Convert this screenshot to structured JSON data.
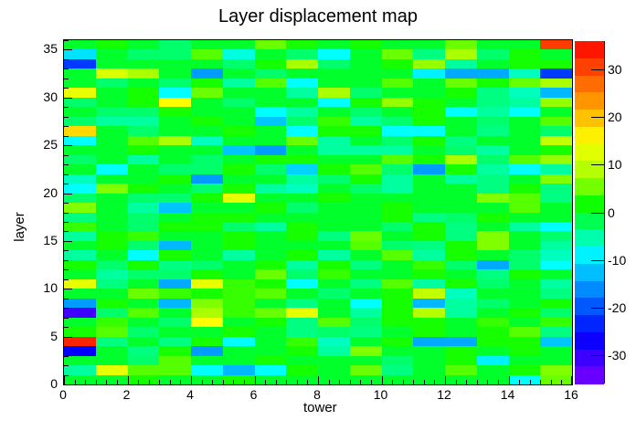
{
  "title": "Layer displacement map",
  "chart_data": {
    "type": "heatmap",
    "title": "Layer displacement map",
    "xlabel": "tower",
    "ylabel": "layer",
    "x_range": [
      0,
      16
    ],
    "y_range": [
      0,
      36
    ],
    "x_major_ticks": [
      0,
      2,
      4,
      6,
      8,
      10,
      12,
      14,
      16
    ],
    "x_minor_divisions_per_major": 6,
    "y_major_ticks": [
      0,
      5,
      10,
      15,
      20,
      25,
      30,
      35
    ],
    "y_minor_step": 1,
    "grid": false,
    "colorbar": {
      "position": "right",
      "tick_labels": [
        30,
        20,
        10,
        0,
        -10,
        -20,
        -30
      ],
      "value_range": [
        -36,
        36
      ],
      "bands": 20,
      "palette": "rainbow",
      "palette_hue_anchors": [
        [
          -36,
          270
        ],
        [
          -26,
          240
        ],
        [
          -20,
          220
        ],
        [
          -14,
          200
        ],
        [
          -8,
          180
        ],
        [
          -4,
          150
        ],
        [
          0,
          130
        ],
        [
          4,
          100
        ],
        [
          8,
          80
        ],
        [
          15,
          60
        ],
        [
          20,
          45
        ],
        [
          36,
          0
        ]
      ]
    },
    "rows_order": "values[0] is layer 0 (bottom row), values[35] is layer 35 (top row); 16 columns = towers 0..15",
    "values": [
      [
        0,
        0,
        2,
        0,
        0,
        2,
        0,
        0,
        0,
        0,
        0,
        0,
        0,
        0,
        -8,
        5
      ],
      [
        -5,
        13,
        4,
        4,
        -8,
        -13,
        -8,
        2,
        0,
        5,
        -4,
        0,
        4,
        0,
        2,
        6
      ],
      [
        0,
        0,
        -3,
        4,
        0,
        0,
        2,
        0,
        0,
        0,
        -3,
        0,
        2,
        -9,
        0,
        0
      ],
      [
        -26,
        0,
        -4,
        2,
        -15,
        0,
        0,
        2,
        -5,
        6,
        0,
        0,
        2,
        0,
        2,
        0
      ],
      [
        33,
        -4,
        0,
        -4,
        2,
        -8,
        0,
        3,
        -6,
        0,
        2,
        -14,
        -14,
        2,
        2,
        -12
      ],
      [
        2,
        4,
        -3,
        0,
        0,
        2,
        0,
        -4,
        -3,
        -4,
        0,
        2,
        0,
        2,
        4,
        -4
      ],
      [
        0,
        3,
        0,
        -3,
        15,
        0,
        2,
        -4,
        4,
        -3,
        2,
        2,
        0,
        3,
        0,
        3
      ],
      [
        -31,
        -3,
        4,
        0,
        8,
        3,
        5,
        13,
        0,
        -5,
        2,
        9,
        -5,
        0,
        2,
        -3
      ],
      [
        -15,
        2,
        0,
        -13,
        6,
        3,
        0,
        -4,
        0,
        -8,
        2,
        -13,
        -5,
        -3,
        0,
        2
      ],
      [
        0,
        0,
        5,
        3,
        2,
        3,
        4,
        0,
        -3,
        0,
        2,
        10,
        -6,
        0,
        0,
        -4
      ],
      [
        13,
        -4,
        0,
        -14,
        13,
        3,
        2,
        -8,
        0,
        -4,
        4,
        -5,
        2,
        -3,
        0,
        -5
      ],
      [
        0,
        -5,
        -3,
        -3,
        2,
        0,
        5,
        -3,
        3,
        0,
        0,
        2,
        0,
        -4,
        2,
        0
      ],
      [
        2,
        -3,
        2,
        -4,
        -3,
        0,
        2,
        -5,
        2,
        -4,
        0,
        3,
        -3,
        -14,
        -3,
        -8
      ],
      [
        -5,
        0,
        -8,
        2,
        0,
        -5,
        0,
        2,
        -5,
        0,
        4,
        -5,
        2,
        0,
        -3,
        -6
      ],
      [
        0,
        2,
        -3,
        -13,
        0,
        2,
        0,
        0,
        0,
        4,
        -3,
        -4,
        2,
        6,
        0,
        -5
      ],
      [
        -5,
        2,
        3,
        0,
        0,
        2,
        0,
        2,
        -4,
        5,
        0,
        2,
        -4,
        6,
        0,
        -3
      ],
      [
        3,
        0,
        -3,
        2,
        2,
        -3,
        -5,
        2,
        0,
        0,
        -3,
        2,
        -4,
        0,
        -5,
        -8
      ],
      [
        -4,
        0,
        -3,
        0,
        2,
        2,
        0,
        0,
        0,
        0,
        2,
        -4,
        -3,
        2,
        0,
        0
      ],
      [
        6,
        0,
        -5,
        -12,
        0,
        0,
        2,
        -3,
        0,
        0,
        2,
        0,
        0,
        0,
        4,
        0
      ],
      [
        -3,
        0,
        -3,
        -3,
        2,
        13,
        0,
        0,
        2,
        0,
        0,
        0,
        0,
        6,
        4,
        -4
      ],
      [
        -8,
        6,
        2,
        0,
        -3,
        2,
        -5,
        -6,
        0,
        -3,
        -5,
        0,
        0,
        -4,
        2,
        -4
      ],
      [
        -6,
        0,
        0,
        2,
        -15,
        0,
        0,
        -5,
        -3,
        2,
        -5,
        0,
        -5,
        -4,
        0,
        6
      ],
      [
        0,
        -8,
        0,
        -3,
        -3,
        2,
        -3,
        -11,
        2,
        4,
        -3,
        -15,
        2,
        -5,
        -8,
        -5
      ],
      [
        -3,
        0,
        -5,
        0,
        -3,
        0,
        2,
        2,
        0,
        0,
        4,
        2,
        8,
        -3,
        4,
        7
      ],
      [
        0,
        0,
        2,
        0,
        0,
        -12,
        -15,
        0,
        -5,
        -5,
        -5,
        0,
        -3,
        -5,
        0,
        2
      ],
      [
        -8,
        0,
        4,
        8,
        -6,
        0,
        0,
        5,
        -5,
        0,
        -3,
        2,
        -4,
        0,
        0,
        10
      ],
      [
        18,
        0,
        -3,
        0,
        0,
        2,
        0,
        -8,
        2,
        2,
        -8,
        -8,
        0,
        -4,
        0,
        -3
      ],
      [
        -3,
        -5,
        -5,
        0,
        2,
        0,
        -12,
        -3,
        3,
        -5,
        -3,
        2,
        0,
        -3,
        0,
        4
      ],
      [
        0,
        -3,
        -3,
        2,
        0,
        0,
        -8,
        -5,
        0,
        -3,
        0,
        2,
        -8,
        -5,
        -8,
        0
      ],
      [
        -3,
        0,
        2,
        15,
        0,
        -3,
        0,
        0,
        -8,
        2,
        7,
        2,
        0,
        -4,
        -5,
        7
      ],
      [
        13,
        0,
        2,
        -8,
        5,
        0,
        0,
        -5,
        8,
        -3,
        0,
        0,
        2,
        -4,
        -6,
        -13
      ],
      [
        0,
        -3,
        0,
        -3,
        2,
        -5,
        4,
        -8,
        0,
        0,
        4,
        0,
        5,
        2,
        5,
        8
      ],
      [
        0,
        12,
        8,
        0,
        -15,
        0,
        -3,
        0,
        0,
        0,
        0,
        -9,
        -14,
        -14,
        -6,
        -22
      ],
      [
        -22,
        0,
        0,
        0,
        0,
        -3,
        2,
        8,
        -3,
        0,
        2,
        7,
        -5,
        0,
        2,
        2
      ],
      [
        -10,
        0,
        -3,
        -3,
        4,
        -7,
        0,
        -3,
        -8,
        0,
        5,
        -4,
        8,
        -3,
        2,
        0
      ],
      [
        0,
        2,
        0,
        -3,
        0,
        0,
        5,
        2,
        0,
        2,
        0,
        0,
        5,
        0,
        0,
        31
      ]
    ]
  }
}
